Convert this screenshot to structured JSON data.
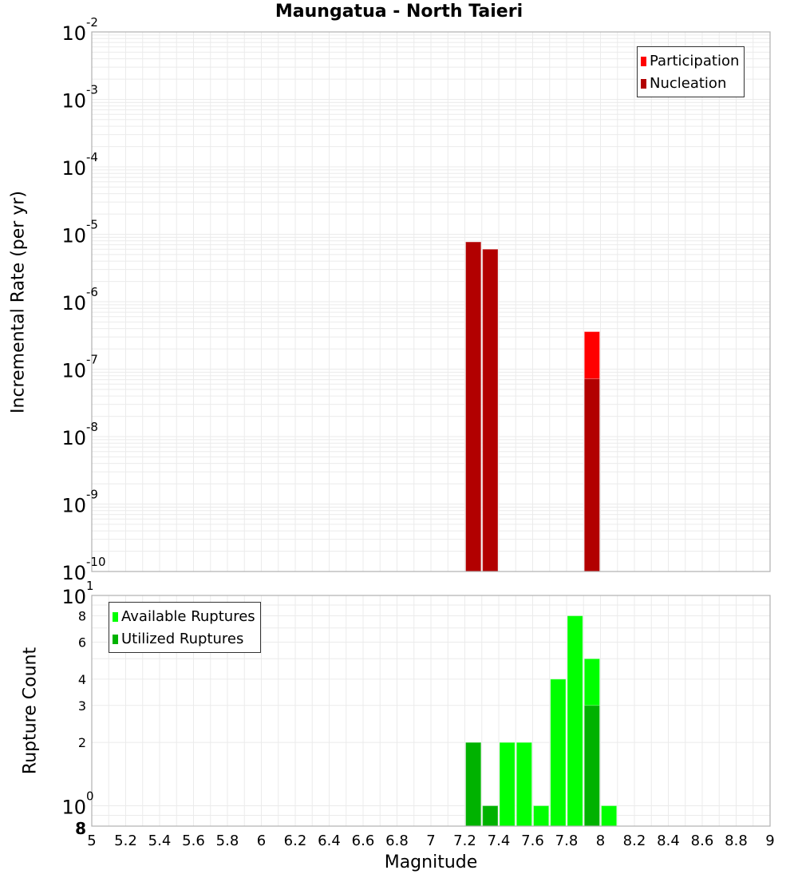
{
  "title": "Maungatua - North Taieri",
  "colors": {
    "participation": "#ff0000",
    "nucleation": "#b20000",
    "available": "#00ff00",
    "utilized": "#00b200",
    "grid": "#ebebeb",
    "frame": "#b0b0b0"
  },
  "top_chart": {
    "ylabel": "Incremental Rate (per yr)",
    "legend": [
      {
        "label": "Participation",
        "color": "#ff0000"
      },
      {
        "label": "Nucleation",
        "color": "#b20000"
      }
    ]
  },
  "bottom_chart": {
    "ylabel": "Rupture Count",
    "legend": [
      {
        "label": "Available Ruptures",
        "color": "#00ff00"
      },
      {
        "label": "Utilized Ruptures",
        "color": "#00b200"
      }
    ]
  },
  "xlabel": "Magnitude",
  "chart_data": [
    {
      "type": "bar",
      "title": "Maungatua - North Taieri",
      "xlabel": "Magnitude",
      "ylabel": "Incremental Rate (per yr)",
      "yscale": "log",
      "xlim": [
        5,
        9
      ],
      "ylim": [
        1e-10,
        0.01
      ],
      "bin_width": 0.1,
      "grid": true,
      "legend_position": "top-right",
      "x": [
        7.25,
        7.35,
        7.95
      ],
      "series": [
        {
          "name": "Participation",
          "color": "#ff0000",
          "values": [
            7.7e-06,
            6e-06,
            3.6e-07
          ]
        },
        {
          "name": "Nucleation",
          "color": "#b20000",
          "values": [
            7.7e-06,
            6e-06,
            7.2e-08
          ]
        }
      ],
      "xticks": [
        "5",
        "5.2",
        "5.4",
        "5.6",
        "5.8",
        "6",
        "6.2",
        "6.4",
        "6.6",
        "6.8",
        "7",
        "7.2",
        "7.4",
        "7.6",
        "7.8",
        "8",
        "8.2",
        "8.4",
        "8.6",
        "8.8",
        "9"
      ],
      "yticks": [
        "10^-2",
        "10^-3",
        "10^-4",
        "10^-5",
        "10^-6",
        "10^-7",
        "10^-8",
        "10^-9",
        "10^-10"
      ]
    },
    {
      "type": "bar",
      "xlabel": "Magnitude",
      "ylabel": "Rupture Count",
      "yscale": "log",
      "xlim": [
        5,
        9
      ],
      "ylim": [
        0.8,
        10
      ],
      "bin_width": 0.1,
      "grid": true,
      "legend_position": "top-left",
      "x": [
        7.25,
        7.35,
        7.45,
        7.55,
        7.65,
        7.75,
        7.85,
        7.95,
        8.05
      ],
      "series": [
        {
          "name": "Available Ruptures",
          "color": "#00ff00",
          "values": [
            2,
            1,
            2,
            2,
            1,
            4,
            8,
            5,
            1
          ]
        },
        {
          "name": "Utilized Ruptures",
          "color": "#00b200",
          "values": [
            2,
            1,
            0,
            0,
            0,
            0,
            0,
            3,
            0
          ]
        }
      ],
      "yticks": [
        "10^1",
        "8",
        "6",
        "4",
        "3",
        "2",
        "10^0",
        "8"
      ]
    }
  ]
}
